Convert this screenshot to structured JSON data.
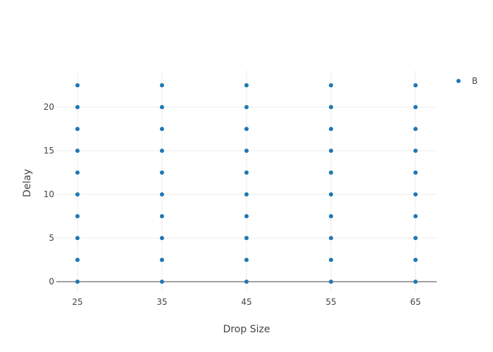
{
  "chart_data": {
    "type": "scatter",
    "xlabel": "Drop Size",
    "ylabel": "Delay",
    "x_ticks": [
      25,
      35,
      45,
      55,
      65
    ],
    "y_ticks": [
      0,
      5,
      10,
      15,
      20
    ],
    "xlim": [
      22.5,
      67.5
    ],
    "ylim": [
      -1.2,
      24.2
    ],
    "grid": true,
    "legend_position": "top-right",
    "series": [
      {
        "name": "B",
        "color": "#1f77b4",
        "points": [
          {
            "x": 25,
            "y": 0
          },
          {
            "x": 25,
            "y": 2.5
          },
          {
            "x": 25,
            "y": 5
          },
          {
            "x": 25,
            "y": 7.5
          },
          {
            "x": 25,
            "y": 10
          },
          {
            "x": 25,
            "y": 12.5
          },
          {
            "x": 25,
            "y": 15
          },
          {
            "x": 25,
            "y": 17.5
          },
          {
            "x": 25,
            "y": 20
          },
          {
            "x": 25,
            "y": 22.5
          },
          {
            "x": 35,
            "y": 0
          },
          {
            "x": 35,
            "y": 2.5
          },
          {
            "x": 35,
            "y": 5
          },
          {
            "x": 35,
            "y": 7.5
          },
          {
            "x": 35,
            "y": 10
          },
          {
            "x": 35,
            "y": 12.5
          },
          {
            "x": 35,
            "y": 15
          },
          {
            "x": 35,
            "y": 17.5
          },
          {
            "x": 35,
            "y": 20
          },
          {
            "x": 35,
            "y": 22.5
          },
          {
            "x": 45,
            "y": 0
          },
          {
            "x": 45,
            "y": 2.5
          },
          {
            "x": 45,
            "y": 5
          },
          {
            "x": 45,
            "y": 7.5
          },
          {
            "x": 45,
            "y": 10
          },
          {
            "x": 45,
            "y": 12.5
          },
          {
            "x": 45,
            "y": 15
          },
          {
            "x": 45,
            "y": 17.5
          },
          {
            "x": 45,
            "y": 20
          },
          {
            "x": 45,
            "y": 22.5
          },
          {
            "x": 55,
            "y": 0
          },
          {
            "x": 55,
            "y": 2.5
          },
          {
            "x": 55,
            "y": 5
          },
          {
            "x": 55,
            "y": 7.5
          },
          {
            "x": 55,
            "y": 10
          },
          {
            "x": 55,
            "y": 12.5
          },
          {
            "x": 55,
            "y": 15
          },
          {
            "x": 55,
            "y": 17.5
          },
          {
            "x": 55,
            "y": 20
          },
          {
            "x": 55,
            "y": 22.5
          },
          {
            "x": 65,
            "y": 0
          },
          {
            "x": 65,
            "y": 2.5
          },
          {
            "x": 65,
            "y": 5
          },
          {
            "x": 65,
            "y": 7.5
          },
          {
            "x": 65,
            "y": 10
          },
          {
            "x": 65,
            "y": 12.5
          },
          {
            "x": 65,
            "y": 15
          },
          {
            "x": 65,
            "y": 17.5
          },
          {
            "x": 65,
            "y": 20
          },
          {
            "x": 65,
            "y": 22.5
          }
        ]
      }
    ]
  }
}
